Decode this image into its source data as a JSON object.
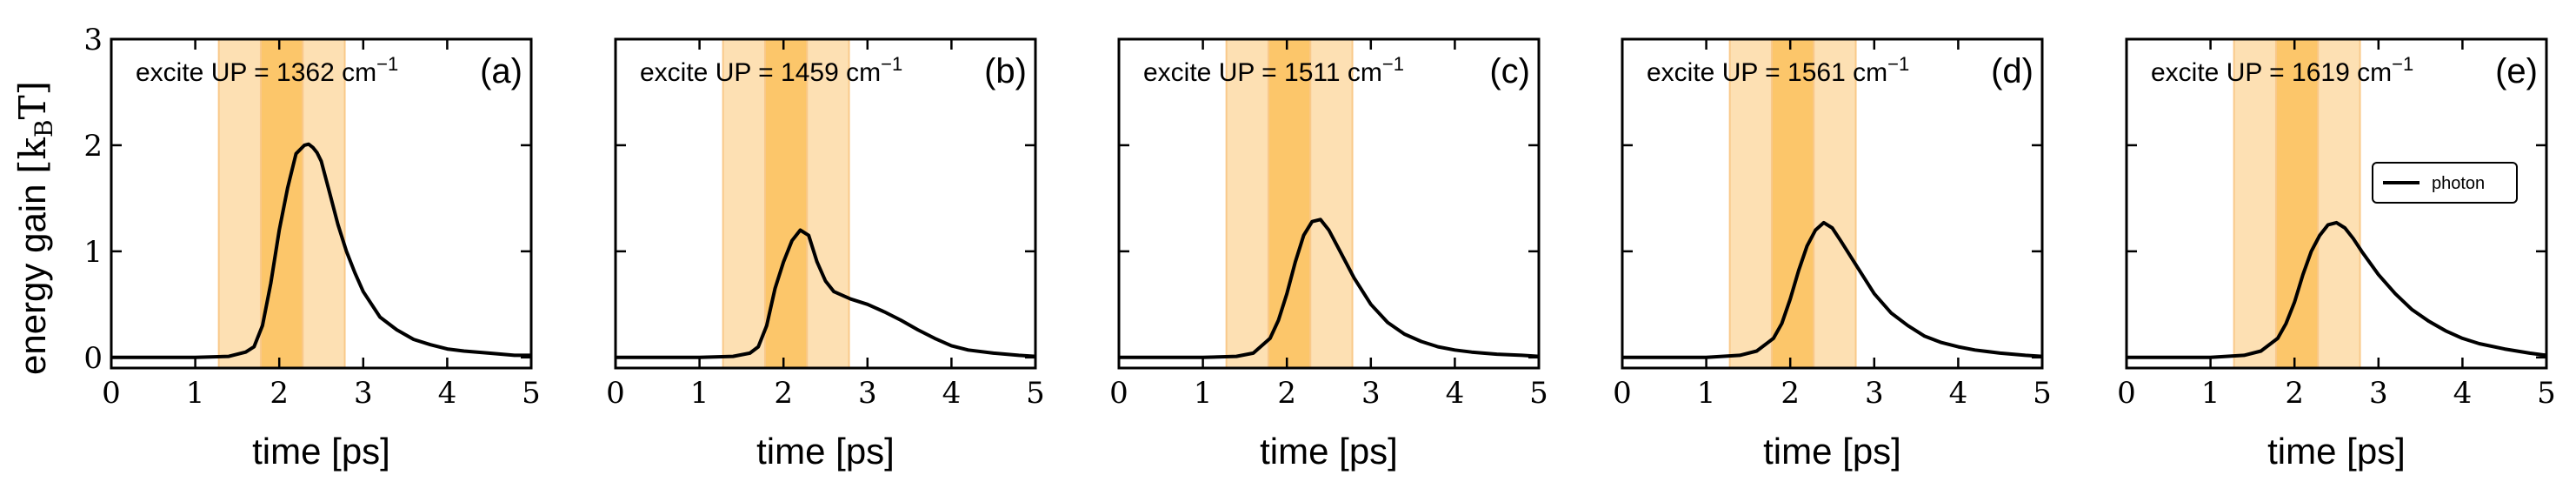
{
  "figure": {
    "ylabel_prefix": "energy gain ",
    "ylabel_unit": "[k",
    "ylabel_unit_sub": "B",
    "ylabel_unit_end": "T]",
    "xlabel": "time [ps]"
  },
  "chart_data": [
    {
      "type": "line",
      "panel": "(a)",
      "annotation": {
        "prefix": "excite UP = 1362 cm",
        "exp": "−1"
      },
      "xlim": [
        0,
        5
      ],
      "ylim": [
        -0.1,
        3
      ],
      "xticks": [
        0,
        1,
        2,
        3,
        4,
        5
      ],
      "yticks": [
        0,
        1,
        2,
        3
      ],
      "bands": {
        "outer": [
          1.28,
          2.78
        ],
        "inner": [
          1.78,
          2.28
        ]
      },
      "series": [
        {
          "x": [
            0,
            1.0,
            1.4,
            1.6,
            1.7,
            1.8,
            1.9,
            2.0,
            2.1,
            2.2,
            2.3,
            2.35,
            2.4,
            2.45,
            2.5,
            2.6,
            2.7,
            2.8,
            2.9,
            3.0,
            3.2,
            3.4,
            3.6,
            3.8,
            4.0,
            4.2,
            4.5,
            4.8,
            5.0
          ],
          "y": [
            0.0,
            0.0,
            0.01,
            0.05,
            0.1,
            0.3,
            0.7,
            1.2,
            1.6,
            1.92,
            2.0,
            2.01,
            1.98,
            1.93,
            1.85,
            1.55,
            1.25,
            1.0,
            0.8,
            0.62,
            0.38,
            0.26,
            0.17,
            0.12,
            0.08,
            0.06,
            0.04,
            0.02,
            0.02
          ]
        }
      ]
    },
    {
      "type": "line",
      "panel": "(b)",
      "annotation": {
        "prefix": "excite UP = 1459 cm",
        "exp": "−1"
      },
      "xlim": [
        0,
        5
      ],
      "ylim": [
        -0.1,
        3
      ],
      "xticks": [
        0,
        1,
        2,
        3,
        4,
        5
      ],
      "yticks": [
        0,
        1,
        2,
        3
      ],
      "bands": {
        "outer": [
          1.28,
          2.78
        ],
        "inner": [
          1.78,
          2.28
        ]
      },
      "series": [
        {
          "x": [
            0,
            1.0,
            1.4,
            1.6,
            1.7,
            1.8,
            1.9,
            2.0,
            2.1,
            2.2,
            2.3,
            2.4,
            2.5,
            2.6,
            2.8,
            3.0,
            3.2,
            3.4,
            3.6,
            3.8,
            4.0,
            4.2,
            4.5,
            4.8,
            5.0
          ],
          "y": [
            0.0,
            0.0,
            0.01,
            0.04,
            0.1,
            0.3,
            0.65,
            0.9,
            1.1,
            1.2,
            1.15,
            0.9,
            0.72,
            0.62,
            0.55,
            0.5,
            0.43,
            0.35,
            0.26,
            0.18,
            0.11,
            0.07,
            0.04,
            0.02,
            0.01
          ]
        }
      ]
    },
    {
      "type": "line",
      "panel": "(c)",
      "annotation": {
        "prefix": "excite UP = 1511 cm",
        "exp": "−1"
      },
      "xlim": [
        0,
        5
      ],
      "ylim": [
        -0.1,
        3
      ],
      "xticks": [
        0,
        1,
        2,
        3,
        4,
        5
      ],
      "yticks": [
        0,
        1,
        2,
        3
      ],
      "bands": {
        "outer": [
          1.28,
          2.78
        ],
        "inner": [
          1.78,
          2.28
        ]
      },
      "series": [
        {
          "x": [
            0,
            1.0,
            1.4,
            1.6,
            1.8,
            1.9,
            2.0,
            2.1,
            2.2,
            2.3,
            2.4,
            2.5,
            2.6,
            2.8,
            3.0,
            3.2,
            3.4,
            3.6,
            3.8,
            4.0,
            4.2,
            4.5,
            4.8,
            5.0
          ],
          "y": [
            0.0,
            0.0,
            0.01,
            0.04,
            0.18,
            0.35,
            0.6,
            0.9,
            1.15,
            1.28,
            1.3,
            1.2,
            1.05,
            0.75,
            0.5,
            0.33,
            0.22,
            0.15,
            0.1,
            0.07,
            0.05,
            0.03,
            0.02,
            0.01
          ]
        }
      ]
    },
    {
      "type": "line",
      "panel": "(d)",
      "annotation": {
        "prefix": "excite UP = 1561 cm",
        "exp": "−1"
      },
      "xlim": [
        0,
        5
      ],
      "ylim": [
        -0.1,
        3
      ],
      "xticks": [
        0,
        1,
        2,
        3,
        4,
        5
      ],
      "yticks": [
        0,
        1,
        2,
        3
      ],
      "bands": {
        "outer": [
          1.28,
          2.78
        ],
        "inner": [
          1.78,
          2.28
        ]
      },
      "series": [
        {
          "x": [
            0,
            1.0,
            1.4,
            1.6,
            1.8,
            1.9,
            2.0,
            2.1,
            2.2,
            2.3,
            2.4,
            2.5,
            2.6,
            2.8,
            3.0,
            3.2,
            3.4,
            3.6,
            3.8,
            4.0,
            4.2,
            4.5,
            4.8,
            5.0
          ],
          "y": [
            0.0,
            0.0,
            0.02,
            0.06,
            0.18,
            0.32,
            0.55,
            0.82,
            1.05,
            1.2,
            1.27,
            1.22,
            1.1,
            0.85,
            0.6,
            0.42,
            0.3,
            0.2,
            0.14,
            0.1,
            0.07,
            0.04,
            0.02,
            0.01
          ]
        }
      ]
    },
    {
      "type": "line",
      "panel": "(e)",
      "annotation": {
        "prefix": "excite UP = 1619 cm",
        "exp": "−1"
      },
      "xlim": [
        0,
        5
      ],
      "ylim": [
        -0.1,
        3
      ],
      "xticks": [
        0,
        1,
        2,
        3,
        4,
        5
      ],
      "yticks": [
        0,
        1,
        2,
        3
      ],
      "bands": {
        "outer": [
          1.28,
          2.78
        ],
        "inner": [
          1.78,
          2.28
        ]
      },
      "legend": {
        "label": "photon",
        "position": "right"
      },
      "series": [
        {
          "name": "photon",
          "x": [
            0,
            1.0,
            1.4,
            1.6,
            1.8,
            1.9,
            2.0,
            2.1,
            2.2,
            2.3,
            2.4,
            2.5,
            2.6,
            2.7,
            2.8,
            3.0,
            3.2,
            3.4,
            3.6,
            3.8,
            4.0,
            4.2,
            4.5,
            4.8,
            5.0
          ],
          "y": [
            0.0,
            0.0,
            0.02,
            0.06,
            0.18,
            0.32,
            0.52,
            0.78,
            1.0,
            1.15,
            1.25,
            1.27,
            1.22,
            1.12,
            1.0,
            0.78,
            0.6,
            0.45,
            0.34,
            0.25,
            0.18,
            0.13,
            0.08,
            0.04,
            0.02
          ]
        }
      ]
    }
  ],
  "style": {
    "line_color": "#000000",
    "band_outer_color": "#fde0b3",
    "band_inner_color": "#fcc66a",
    "band_edge_color": "#f9c98a"
  }
}
